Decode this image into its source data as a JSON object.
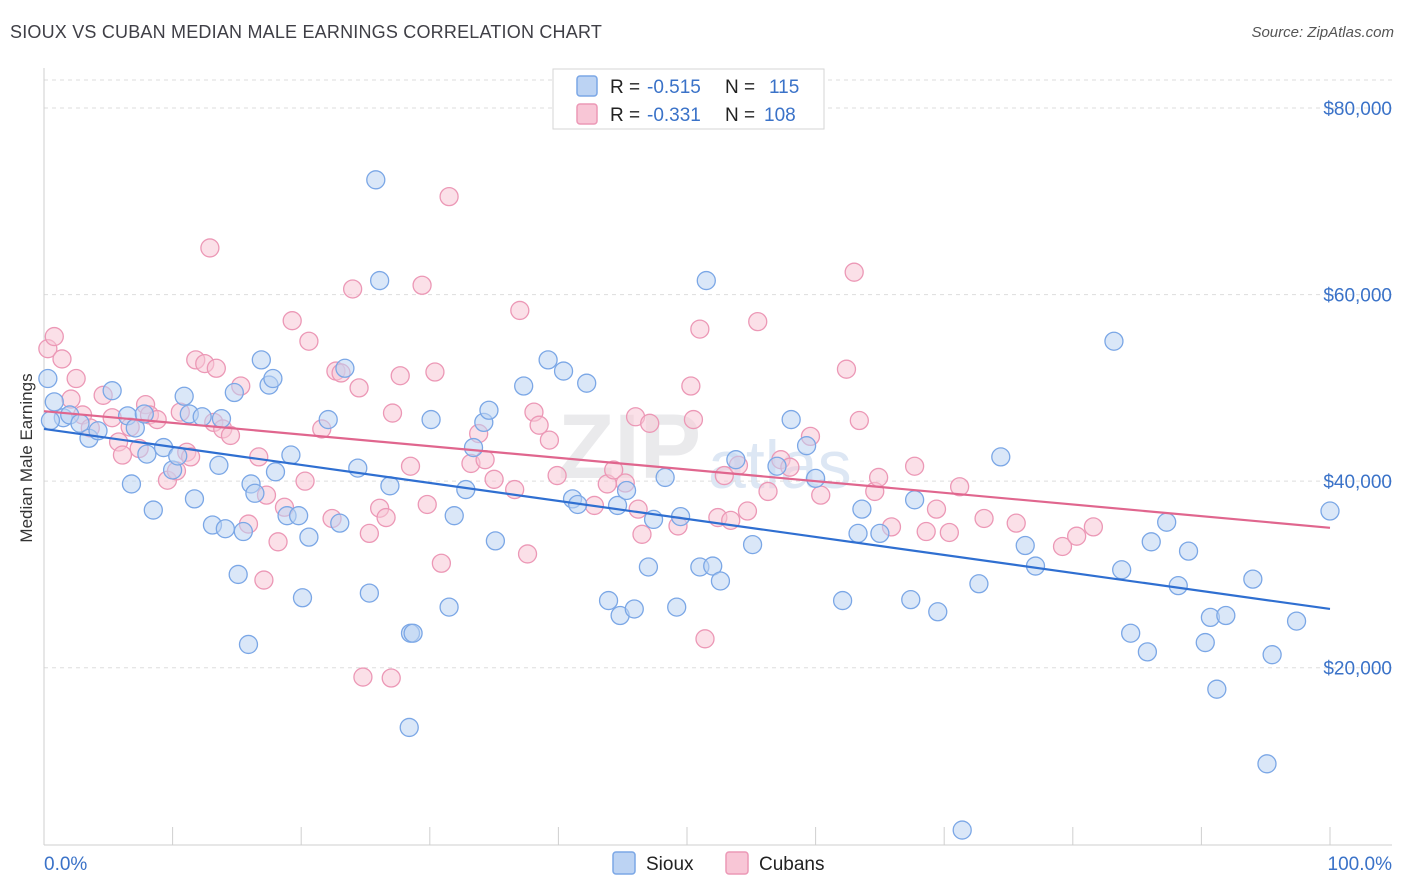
{
  "header": {
    "title": "SIOUX VS CUBAN MEDIAN MALE EARNINGS CORRELATION CHART",
    "source": "Source: ZipAtlas.com"
  },
  "watermark": {
    "zip": "ZIP",
    "atlas": "atlas"
  },
  "legend": {
    "r_label": "R =",
    "n_label": "N =",
    "rows": [
      {
        "series": "Sioux",
        "r": "-0.515",
        "n": "115",
        "color": "#7ba7e6"
      },
      {
        "series": "Cubans",
        "r": "-0.331",
        "n": "108",
        "color": "#f2a0bc"
      }
    ]
  },
  "colors": {
    "sioux_fill": "#bcd3f3",
    "sioux_stroke": "#7ba7e6",
    "sioux_line": "#2f6fd1",
    "cuban_fill": "#f8c6d6",
    "cuban_stroke": "#ec98b6",
    "cuban_line": "#e0668e",
    "grid": "#dddddd",
    "axis_text": "#3a72c8"
  },
  "chart_data": {
    "type": "scatter",
    "title": "SIOUX VS CUBAN MEDIAN MALE EARNINGS CORRELATION CHART",
    "xlabel": "",
    "ylabel": "Median Male Earnings",
    "xlim": [
      0,
      100
    ],
    "ylim": [
      1000,
      83000
    ],
    "x_tick_labels": [
      "0.0%",
      "100.0%"
    ],
    "y_ticks": [
      20000,
      40000,
      60000,
      80000
    ],
    "y_tick_labels": [
      "$20,000",
      "$40,000",
      "$60,000",
      "$80,000"
    ],
    "grid": true,
    "legend_position": "bottom-center",
    "series": [
      {
        "name": "Sioux",
        "trend": {
          "x": [
            0,
            100
          ],
          "y": [
            45600,
            26300
          ]
        },
        "points": [
          [
            0.3,
            51000
          ],
          [
            0.8,
            48500
          ],
          [
            1.5,
            46800
          ],
          [
            2,
            47100
          ],
          [
            2.8,
            46200
          ],
          [
            3.5,
            44600
          ],
          [
            4.2,
            45400
          ],
          [
            5.3,
            49700
          ],
          [
            6.5,
            47000
          ],
          [
            7.1,
            45700
          ],
          [
            6.8,
            39700
          ],
          [
            7.8,
            47200
          ],
          [
            8,
            42900
          ],
          [
            8.5,
            36900
          ],
          [
            9.3,
            43600
          ],
          [
            10,
            41200
          ],
          [
            10.4,
            42700
          ],
          [
            10.9,
            49100
          ],
          [
            11.3,
            47200
          ],
          [
            11.7,
            38100
          ],
          [
            12.3,
            46900
          ],
          [
            13.1,
            35300
          ],
          [
            13.6,
            41700
          ],
          [
            13.8,
            46700
          ],
          [
            14.1,
            34900
          ],
          [
            14.8,
            49500
          ],
          [
            15.1,
            30000
          ],
          [
            15.5,
            34600
          ],
          [
            15.9,
            22500
          ],
          [
            16.1,
            39700
          ],
          [
            16.4,
            38700
          ],
          [
            16.9,
            53000
          ],
          [
            17.5,
            50300
          ],
          [
            17.8,
            51000
          ],
          [
            18,
            41000
          ],
          [
            18.9,
            36300
          ],
          [
            19.2,
            42800
          ],
          [
            19.8,
            36300
          ],
          [
            20.1,
            27500
          ],
          [
            20.6,
            34000
          ],
          [
            22.1,
            46600
          ],
          [
            23.4,
            52100
          ],
          [
            23,
            35500
          ],
          [
            24.4,
            41400
          ],
          [
            25.3,
            28000
          ],
          [
            25.8,
            72300
          ],
          [
            26.1,
            61500
          ],
          [
            26.9,
            39500
          ],
          [
            28.5,
            23700
          ],
          [
            28.7,
            23700
          ],
          [
            28.4,
            13600
          ],
          [
            30.1,
            46600
          ],
          [
            31.5,
            26500
          ],
          [
            31.9,
            36300
          ],
          [
            32.8,
            39100
          ],
          [
            33.4,
            43600
          ],
          [
            34.2,
            46300
          ],
          [
            34.6,
            47600
          ],
          [
            35.1,
            33600
          ],
          [
            37.3,
            50200
          ],
          [
            39.2,
            53000
          ],
          [
            40.4,
            51800
          ],
          [
            41.1,
            38100
          ],
          [
            41.5,
            37500
          ],
          [
            42.2,
            50500
          ],
          [
            43.9,
            27200
          ],
          [
            44.6,
            37400
          ],
          [
            44.8,
            25600
          ],
          [
            45.3,
            39000
          ],
          [
            45.9,
            26300
          ],
          [
            47,
            30800
          ],
          [
            47.4,
            35900
          ],
          [
            48.3,
            40400
          ],
          [
            49.2,
            26500
          ],
          [
            49.5,
            36200
          ],
          [
            51,
            30800
          ],
          [
            51.5,
            61500
          ],
          [
            52,
            30900
          ],
          [
            52.6,
            29300
          ],
          [
            53.8,
            42300
          ],
          [
            55.1,
            33200
          ],
          [
            57,
            41600
          ],
          [
            58.1,
            46600
          ],
          [
            59.3,
            43800
          ],
          [
            60,
            40300
          ],
          [
            62.1,
            27200
          ],
          [
            63.3,
            34400
          ],
          [
            63.6,
            37000
          ],
          [
            65,
            34400
          ],
          [
            67.4,
            27300
          ],
          [
            67.7,
            38000
          ],
          [
            69.5,
            26000
          ],
          [
            72.7,
            29000
          ],
          [
            74.4,
            42600
          ],
          [
            76.3,
            33100
          ],
          [
            77.1,
            30900
          ],
          [
            83.2,
            55000
          ],
          [
            83.8,
            30500
          ],
          [
            84.5,
            23700
          ],
          [
            85.8,
            21700
          ],
          [
            86.1,
            33500
          ],
          [
            87.3,
            35600
          ],
          [
            88.2,
            28800
          ],
          [
            89,
            32500
          ],
          [
            90.3,
            22700
          ],
          [
            90.7,
            25400
          ],
          [
            91.2,
            17700
          ],
          [
            91.9,
            25600
          ],
          [
            94,
            29500
          ],
          [
            95.5,
            21400
          ],
          [
            95.1,
            9700
          ],
          [
            97.4,
            25000
          ],
          [
            100,
            36800
          ],
          [
            0.5,
            46500
          ],
          [
            71.4,
            2600
          ]
        ]
      },
      {
        "name": "Cubans",
        "trend": {
          "x": [
            0,
            100
          ],
          "y": [
            47500,
            35000
          ]
        },
        "points": [
          [
            0.3,
            54200
          ],
          [
            0.8,
            55500
          ],
          [
            1.4,
            53100
          ],
          [
            2.1,
            48800
          ],
          [
            2.5,
            51000
          ],
          [
            3,
            47100
          ],
          [
            3.6,
            45700
          ],
          [
            4.6,
            49200
          ],
          [
            5.3,
            46800
          ],
          [
            5.8,
            44200
          ],
          [
            6.1,
            42800
          ],
          [
            6.7,
            45800
          ],
          [
            7.4,
            43500
          ],
          [
            7.9,
            48200
          ],
          [
            8.2,
            47100
          ],
          [
            8.8,
            46600
          ],
          [
            9.6,
            40100
          ],
          [
            10.3,
            41100
          ],
          [
            10.6,
            47400
          ],
          [
            11.1,
            43100
          ],
          [
            11.8,
            53000
          ],
          [
            12.5,
            52600
          ],
          [
            13.4,
            52100
          ],
          [
            11.4,
            42600
          ],
          [
            12.9,
            65000
          ],
          [
            13.2,
            46300
          ],
          [
            13.9,
            45600
          ],
          [
            14.5,
            44900
          ],
          [
            15.3,
            50200
          ],
          [
            15.9,
            35400
          ],
          [
            16.7,
            42600
          ],
          [
            17.1,
            29400
          ],
          [
            17.3,
            38500
          ],
          [
            18.2,
            33500
          ],
          [
            18.7,
            37200
          ],
          [
            19.3,
            57200
          ],
          [
            20.3,
            40000
          ],
          [
            20.6,
            55000
          ],
          [
            21.6,
            45600
          ],
          [
            22.4,
            36000
          ],
          [
            22.7,
            51800
          ],
          [
            23.1,
            51600
          ],
          [
            24,
            60600
          ],
          [
            24.5,
            50000
          ],
          [
            25.3,
            34400
          ],
          [
            26.1,
            37100
          ],
          [
            26.6,
            36100
          ],
          [
            27.1,
            47300
          ],
          [
            27.7,
            51300
          ],
          [
            28.5,
            41600
          ],
          [
            29.4,
            61000
          ],
          [
            29.8,
            37500
          ],
          [
            30.4,
            51700
          ],
          [
            30.9,
            31200
          ],
          [
            31.5,
            70500
          ],
          [
            33.2,
            41900
          ],
          [
            33.8,
            45100
          ],
          [
            34.3,
            42300
          ],
          [
            35,
            40200
          ],
          [
            36.6,
            39100
          ],
          [
            37,
            58300
          ],
          [
            37.6,
            32200
          ],
          [
            38.1,
            47400
          ],
          [
            38.5,
            46000
          ],
          [
            39.3,
            44400
          ],
          [
            39.9,
            40600
          ],
          [
            27,
            18900
          ],
          [
            42.8,
            37400
          ],
          [
            43.8,
            39700
          ],
          [
            44.3,
            41200
          ],
          [
            45.2,
            39800
          ],
          [
            46,
            46900
          ],
          [
            46.2,
            37000
          ],
          [
            46.5,
            34300
          ],
          [
            47.1,
            46200
          ],
          [
            49.3,
            35200
          ],
          [
            50.3,
            50200
          ],
          [
            51.4,
            23100
          ],
          [
            52.4,
            36100
          ],
          [
            52.9,
            40600
          ],
          [
            53.4,
            35800
          ],
          [
            54,
            41700
          ],
          [
            54.7,
            36800
          ],
          [
            55.5,
            57100
          ],
          [
            56.3,
            38900
          ],
          [
            57.3,
            42300
          ],
          [
            58,
            41500
          ],
          [
            59.6,
            44800
          ],
          [
            60.4,
            38500
          ],
          [
            62.4,
            52000
          ],
          [
            63,
            62400
          ],
          [
            63.4,
            46500
          ],
          [
            64.6,
            38900
          ],
          [
            64.9,
            40400
          ],
          [
            65.9,
            35100
          ],
          [
            67.7,
            41600
          ],
          [
            68.6,
            34600
          ],
          [
            69.4,
            37000
          ],
          [
            70.4,
            34500
          ],
          [
            71.2,
            39400
          ],
          [
            73.1,
            36000
          ],
          [
            75.6,
            35500
          ],
          [
            79.2,
            33000
          ],
          [
            80.3,
            34100
          ],
          [
            81.6,
            35100
          ],
          [
            50.5,
            46600
          ],
          [
            51,
            56300
          ],
          [
            24.8,
            19000
          ]
        ]
      }
    ]
  },
  "bottom_legend": {
    "items": [
      "Sioux",
      "Cubans"
    ]
  }
}
